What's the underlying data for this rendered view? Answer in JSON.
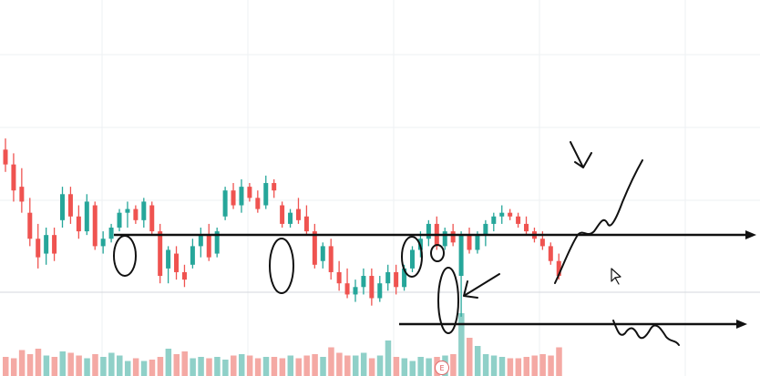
{
  "colors": {
    "up": "#26a69a",
    "down": "#ef5350",
    "up_volume": "#8fd0c8",
    "down_volume": "#f4a9a4",
    "annotation": "#111111",
    "grid": "#eef0f3"
  },
  "earnings_marker": {
    "label": "E"
  },
  "chart_data": {
    "type": "candlestick",
    "title": "",
    "xlabel": "",
    "ylabel": "",
    "grid": true,
    "ylim": [
      0,
      100
    ],
    "volume_ylim": [
      0,
      100
    ],
    "candles": [
      {
        "o": 92,
        "h": 98,
        "l": 80,
        "c": 84
      },
      {
        "o": 84,
        "h": 90,
        "l": 64,
        "c": 70
      },
      {
        "o": 72,
        "h": 82,
        "l": 58,
        "c": 64
      },
      {
        "o": 58,
        "h": 66,
        "l": 40,
        "c": 44
      },
      {
        "o": 44,
        "h": 52,
        "l": 28,
        "c": 34
      },
      {
        "o": 36,
        "h": 50,
        "l": 30,
        "c": 46
      },
      {
        "o": 46,
        "h": 50,
        "l": 32,
        "c": 36
      },
      {
        "o": 54,
        "h": 72,
        "l": 50,
        "c": 68
      },
      {
        "o": 68,
        "h": 72,
        "l": 52,
        "c": 56
      },
      {
        "o": 56,
        "h": 62,
        "l": 44,
        "c": 48
      },
      {
        "o": 48,
        "h": 68,
        "l": 46,
        "c": 64
      },
      {
        "o": 62,
        "h": 64,
        "l": 38,
        "c": 40
      },
      {
        "o": 40,
        "h": 48,
        "l": 36,
        "c": 44
      },
      {
        "o": 44,
        "h": 52,
        "l": 42,
        "c": 50
      },
      {
        "o": 50,
        "h": 60,
        "l": 48,
        "c": 58
      },
      {
        "o": 58,
        "h": 64,
        "l": 50,
        "c": 60
      },
      {
        "o": 60,
        "h": 62,
        "l": 52,
        "c": 54
      },
      {
        "o": 54,
        "h": 66,
        "l": 50,
        "c": 64
      },
      {
        "o": 62,
        "h": 64,
        "l": 46,
        "c": 48
      },
      {
        "o": 48,
        "h": 52,
        "l": 20,
        "c": 24
      },
      {
        "o": 28,
        "h": 40,
        "l": 20,
        "c": 38
      },
      {
        "o": 36,
        "h": 40,
        "l": 22,
        "c": 26
      },
      {
        "o": 26,
        "h": 30,
        "l": 18,
        "c": 22
      },
      {
        "o": 30,
        "h": 44,
        "l": 28,
        "c": 40
      },
      {
        "o": 40,
        "h": 50,
        "l": 34,
        "c": 46
      },
      {
        "o": 46,
        "h": 52,
        "l": 32,
        "c": 34
      },
      {
        "o": 36,
        "h": 50,
        "l": 34,
        "c": 48
      },
      {
        "o": 56,
        "h": 72,
        "l": 54,
        "c": 70
      },
      {
        "o": 70,
        "h": 74,
        "l": 60,
        "c": 62
      },
      {
        "o": 62,
        "h": 76,
        "l": 58,
        "c": 72
      },
      {
        "o": 72,
        "h": 74,
        "l": 64,
        "c": 66
      },
      {
        "o": 66,
        "h": 70,
        "l": 58,
        "c": 60
      },
      {
        "o": 62,
        "h": 78,
        "l": 60,
        "c": 74
      },
      {
        "o": 74,
        "h": 76,
        "l": 66,
        "c": 70
      },
      {
        "o": 62,
        "h": 64,
        "l": 50,
        "c": 52
      },
      {
        "o": 52,
        "h": 60,
        "l": 50,
        "c": 58
      },
      {
        "o": 60,
        "h": 66,
        "l": 52,
        "c": 54
      },
      {
        "o": 56,
        "h": 62,
        "l": 46,
        "c": 48
      },
      {
        "o": 48,
        "h": 52,
        "l": 28,
        "c": 30
      },
      {
        "o": 32,
        "h": 42,
        "l": 28,
        "c": 40
      },
      {
        "o": 40,
        "h": 44,
        "l": 22,
        "c": 26
      },
      {
        "o": 26,
        "h": 32,
        "l": 16,
        "c": 20
      },
      {
        "o": 20,
        "h": 28,
        "l": 12,
        "c": 14
      },
      {
        "o": 14,
        "h": 22,
        "l": 10,
        "c": 18
      },
      {
        "o": 18,
        "h": 28,
        "l": 14,
        "c": 24
      },
      {
        "o": 24,
        "h": 28,
        "l": 8,
        "c": 12
      },
      {
        "o": 12,
        "h": 24,
        "l": 10,
        "c": 20
      },
      {
        "o": 20,
        "h": 30,
        "l": 16,
        "c": 26
      },
      {
        "o": 26,
        "h": 30,
        "l": 14,
        "c": 18
      },
      {
        "o": 18,
        "h": 30,
        "l": 16,
        "c": 28
      },
      {
        "o": 28,
        "h": 40,
        "l": 26,
        "c": 38
      },
      {
        "o": 38,
        "h": 48,
        "l": 34,
        "c": 44
      },
      {
        "o": 44,
        "h": 54,
        "l": 40,
        "c": 52
      },
      {
        "o": 52,
        "h": 56,
        "l": 38,
        "c": 40
      },
      {
        "o": 40,
        "h": 50,
        "l": 38,
        "c": 48
      },
      {
        "o": 48,
        "h": 52,
        "l": 40,
        "c": 42
      },
      {
        "o": 24,
        "h": 48,
        "l": 2,
        "c": 46
      },
      {
        "o": 46,
        "h": 50,
        "l": 36,
        "c": 38
      },
      {
        "o": 38,
        "h": 48,
        "l": 36,
        "c": 46
      },
      {
        "o": 46,
        "h": 54,
        "l": 40,
        "c": 52
      },
      {
        "o": 52,
        "h": 58,
        "l": 48,
        "c": 56
      },
      {
        "o": 56,
        "h": 62,
        "l": 52,
        "c": 58
      },
      {
        "o": 58,
        "h": 60,
        "l": 54,
        "c": 56
      },
      {
        "o": 56,
        "h": 58,
        "l": 50,
        "c": 52
      },
      {
        "o": 52,
        "h": 56,
        "l": 46,
        "c": 48
      },
      {
        "o": 48,
        "h": 50,
        "l": 42,
        "c": 44
      },
      {
        "o": 44,
        "h": 48,
        "l": 38,
        "c": 40
      },
      {
        "o": 40,
        "h": 42,
        "l": 30,
        "c": 32
      },
      {
        "o": 32,
        "h": 36,
        "l": 22,
        "c": 24
      }
    ],
    "volume": [
      28,
      26,
      38,
      32,
      40,
      30,
      28,
      36,
      34,
      30,
      26,
      32,
      28,
      34,
      30,
      22,
      26,
      22,
      24,
      28,
      40,
      32,
      36,
      26,
      28,
      26,
      28,
      24,
      30,
      32,
      30,
      26,
      28,
      28,
      26,
      30,
      26,
      30,
      32,
      28,
      42,
      34,
      30,
      30,
      34,
      26,
      30,
      52,
      28,
      26,
      22,
      28,
      26,
      28,
      30,
      32,
      92,
      56,
      44,
      32,
      30,
      28,
      26,
      26,
      28,
      30,
      32,
      30,
      42
    ],
    "levels": [
      {
        "name": "resistance",
        "value": 52
      },
      {
        "name": "support",
        "value": 5
      }
    ]
  }
}
